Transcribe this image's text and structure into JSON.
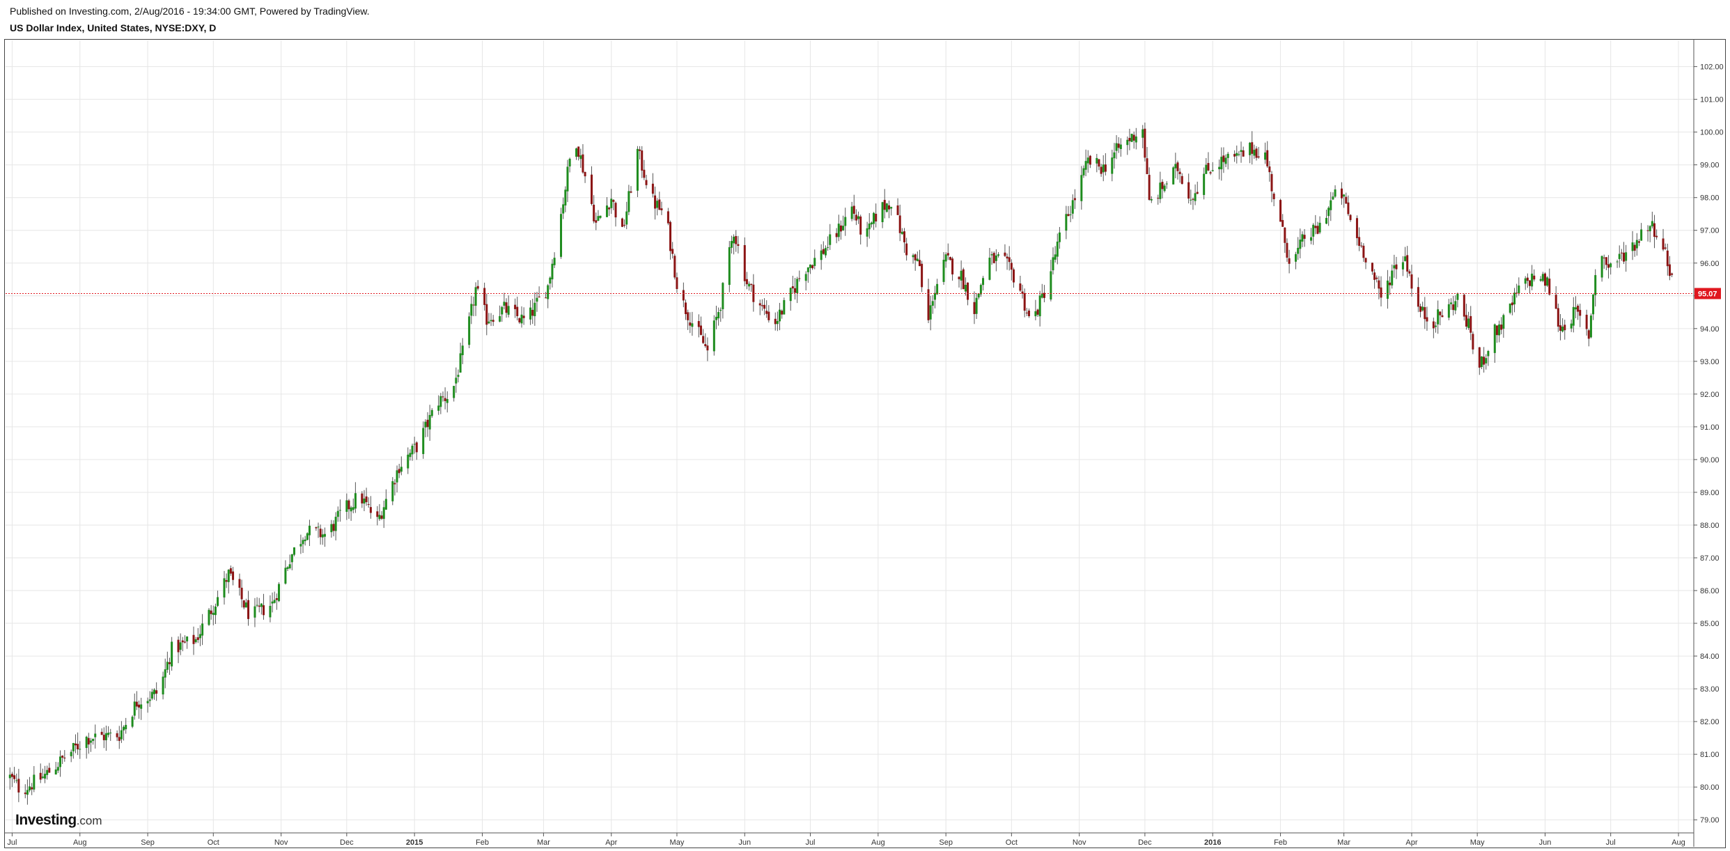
{
  "header": {
    "published": "Published on Investing.com, 2/Aug/2016 - 19:34:00 GMT, Powered by TradingView.",
    "title": "US Dollar Index, United States, NYSE:DXY, D"
  },
  "logo": {
    "brand": "Investing",
    "suffix": ".com"
  },
  "colors": {
    "up": "#1e8c1e",
    "down": "#8b1414",
    "price_line": "#e0171f",
    "grid": "#e6e6e6",
    "axis_text": "#333333"
  },
  "chart_data": {
    "type": "candlestick",
    "title": "US Dollar Index, United States, NYSE:DXY, D",
    "ylim": [
      78.6,
      102.8
    ],
    "y_ticks": [
      "79.00",
      "80.00",
      "81.00",
      "82.00",
      "83.00",
      "84.00",
      "85.00",
      "86.00",
      "87.00",
      "88.00",
      "89.00",
      "90.00",
      "91.00",
      "92.00",
      "93.00",
      "94.00",
      "95.00",
      "96.00",
      "97.00",
      "98.00",
      "99.00",
      "100.00",
      "101.00",
      "102.00"
    ],
    "x_ticks": [
      {
        "label": "Jul",
        "day": 1,
        "bold": false
      },
      {
        "label": "Aug",
        "day": 32,
        "bold": false
      },
      {
        "label": "Sep",
        "day": 63,
        "bold": false
      },
      {
        "label": "Oct",
        "day": 93,
        "bold": false
      },
      {
        "label": "Nov",
        "day": 124,
        "bold": false
      },
      {
        "label": "Dec",
        "day": 154,
        "bold": false
      },
      {
        "label": "2015",
        "day": 185,
        "bold": true
      },
      {
        "label": "Feb",
        "day": 216,
        "bold": false
      },
      {
        "label": "Mar",
        "day": 244,
        "bold": false
      },
      {
        "label": "Apr",
        "day": 275,
        "bold": false
      },
      {
        "label": "May",
        "day": 305,
        "bold": false
      },
      {
        "label": "Jun",
        "day": 336,
        "bold": false
      },
      {
        "label": "Jul",
        "day": 366,
        "bold": false
      },
      {
        "label": "Aug",
        "day": 397,
        "bold": false
      },
      {
        "label": "Sep",
        "day": 428,
        "bold": false
      },
      {
        "label": "Oct",
        "day": 458,
        "bold": false
      },
      {
        "label": "Nov",
        "day": 489,
        "bold": false
      },
      {
        "label": "Dec",
        "day": 519,
        "bold": false
      },
      {
        "label": "2016",
        "day": 550,
        "bold": true
      },
      {
        "label": "Feb",
        "day": 581,
        "bold": false
      },
      {
        "label": "Mar",
        "day": 610,
        "bold": false
      },
      {
        "label": "Apr",
        "day": 641,
        "bold": false
      },
      {
        "label": "May",
        "day": 671,
        "bold": false
      },
      {
        "label": "Jun",
        "day": 702,
        "bold": false
      },
      {
        "label": "Jul",
        "day": 732,
        "bold": false
      },
      {
        "label": "Aug",
        "day": 763,
        "bold": false
      }
    ],
    "last_price": 95.07,
    "last_price_label": "95.07",
    "close_path": [
      {
        "day": 0,
        "value": 80.3
      },
      {
        "day": 5,
        "value": 79.9
      },
      {
        "day": 15,
        "value": 80.3
      },
      {
        "day": 25,
        "value": 80.9
      },
      {
        "day": 35,
        "value": 81.5
      },
      {
        "day": 50,
        "value": 81.6
      },
      {
        "day": 58,
        "value": 82.6
      },
      {
        "day": 68,
        "value": 82.9
      },
      {
        "day": 74,
        "value": 84.2
      },
      {
        "day": 85,
        "value": 84.5
      },
      {
        "day": 95,
        "value": 85.8
      },
      {
        "day": 100,
        "value": 86.5
      },
      {
        "day": 110,
        "value": 85.2
      },
      {
        "day": 120,
        "value": 85.6
      },
      {
        "day": 128,
        "value": 87.0
      },
      {
        "day": 135,
        "value": 87.8
      },
      {
        "day": 145,
        "value": 87.7
      },
      {
        "day": 152,
        "value": 88.4
      },
      {
        "day": 160,
        "value": 88.9
      },
      {
        "day": 168,
        "value": 88.1
      },
      {
        "day": 178,
        "value": 89.8
      },
      {
        "day": 186,
        "value": 90.4
      },
      {
        "day": 196,
        "value": 91.8
      },
      {
        "day": 202,
        "value": 92.0
      },
      {
        "day": 208,
        "value": 93.5
      },
      {
        "day": 213,
        "value": 95.2
      },
      {
        "day": 218,
        "value": 94.3
      },
      {
        "day": 226,
        "value": 94.6
      },
      {
        "day": 236,
        "value": 94.2
      },
      {
        "day": 246,
        "value": 95.3
      },
      {
        "day": 252,
        "value": 97.5
      },
      {
        "day": 258,
        "value": 100.0
      },
      {
        "day": 264,
        "value": 98.4
      },
      {
        "day": 268,
        "value": 97.2
      },
      {
        "day": 275,
        "value": 98.0
      },
      {
        "day": 280,
        "value": 96.9
      },
      {
        "day": 287,
        "value": 99.4
      },
      {
        "day": 294,
        "value": 97.9
      },
      {
        "day": 300,
        "value": 97.4
      },
      {
        "day": 306,
        "value": 95.0
      },
      {
        "day": 312,
        "value": 94.2
      },
      {
        "day": 319,
        "value": 93.3
      },
      {
        "day": 325,
        "value": 94.8
      },
      {
        "day": 331,
        "value": 97.0
      },
      {
        "day": 337,
        "value": 95.4
      },
      {
        "day": 344,
        "value": 94.6
      },
      {
        "day": 350,
        "value": 94.2
      },
      {
        "day": 356,
        "value": 94.9
      },
      {
        "day": 363,
        "value": 95.8
      },
      {
        "day": 371,
        "value": 96.3
      },
      {
        "day": 378,
        "value": 96.9
      },
      {
        "day": 385,
        "value": 97.7
      },
      {
        "day": 391,
        "value": 96.7
      },
      {
        "day": 397,
        "value": 97.6
      },
      {
        "day": 403,
        "value": 97.9
      },
      {
        "day": 410,
        "value": 96.4
      },
      {
        "day": 416,
        "value": 95.9
      },
      {
        "day": 419,
        "value": 93.8
      },
      {
        "day": 422,
        "value": 95.0
      },
      {
        "day": 428,
        "value": 96.1
      },
      {
        "day": 435,
        "value": 95.6
      },
      {
        "day": 441,
        "value": 94.6
      },
      {
        "day": 447,
        "value": 96.1
      },
      {
        "day": 454,
        "value": 96.1
      },
      {
        "day": 461,
        "value": 95.4
      },
      {
        "day": 467,
        "value": 94.1
      },
      {
        "day": 474,
        "value": 95.3
      },
      {
        "day": 481,
        "value": 97.0
      },
      {
        "day": 487,
        "value": 98.0
      },
      {
        "day": 493,
        "value": 99.1
      },
      {
        "day": 500,
        "value": 98.9
      },
      {
        "day": 507,
        "value": 99.5
      },
      {
        "day": 514,
        "value": 99.9
      },
      {
        "day": 518,
        "value": 100.1
      },
      {
        "day": 521,
        "value": 97.8
      },
      {
        "day": 528,
        "value": 98.4
      },
      {
        "day": 534,
        "value": 98.9
      },
      {
        "day": 540,
        "value": 98.0
      },
      {
        "day": 547,
        "value": 98.8
      },
      {
        "day": 553,
        "value": 99.1
      },
      {
        "day": 561,
        "value": 99.2
      },
      {
        "day": 568,
        "value": 99.5
      },
      {
        "day": 574,
        "value": 99.3
      },
      {
        "day": 580,
        "value": 97.4
      },
      {
        "day": 586,
        "value": 95.9
      },
      {
        "day": 592,
        "value": 96.8
      },
      {
        "day": 598,
        "value": 97.0
      },
      {
        "day": 605,
        "value": 98.0
      },
      {
        "day": 609,
        "value": 98.1
      },
      {
        "day": 615,
        "value": 96.9
      },
      {
        "day": 621,
        "value": 96.1
      },
      {
        "day": 627,
        "value": 94.9
      },
      {
        "day": 633,
        "value": 95.9
      },
      {
        "day": 638,
        "value": 96.2
      },
      {
        "day": 644,
        "value": 94.6
      },
      {
        "day": 650,
        "value": 94.2
      },
      {
        "day": 656,
        "value": 94.5
      },
      {
        "day": 662,
        "value": 94.9
      },
      {
        "day": 668,
        "value": 93.9
      },
      {
        "day": 671,
        "value": 92.6
      },
      {
        "day": 678,
        "value": 93.8
      },
      {
        "day": 684,
        "value": 94.3
      },
      {
        "day": 690,
        "value": 95.2
      },
      {
        "day": 697,
        "value": 95.6
      },
      {
        "day": 703,
        "value": 95.4
      },
      {
        "day": 709,
        "value": 94.0
      },
      {
        "day": 716,
        "value": 94.5
      },
      {
        "day": 722,
        "value": 93.8
      },
      {
        "day": 726,
        "value": 96.4
      },
      {
        "day": 731,
        "value": 95.9
      },
      {
        "day": 737,
        "value": 96.2
      },
      {
        "day": 743,
        "value": 96.6
      },
      {
        "day": 749,
        "value": 97.2
      },
      {
        "day": 753,
        "value": 97.0
      },
      {
        "day": 756,
        "value": 96.5
      },
      {
        "day": 759,
        "value": 95.8
      },
      {
        "day": 762,
        "value": 95.07
      }
    ],
    "grid": true
  }
}
